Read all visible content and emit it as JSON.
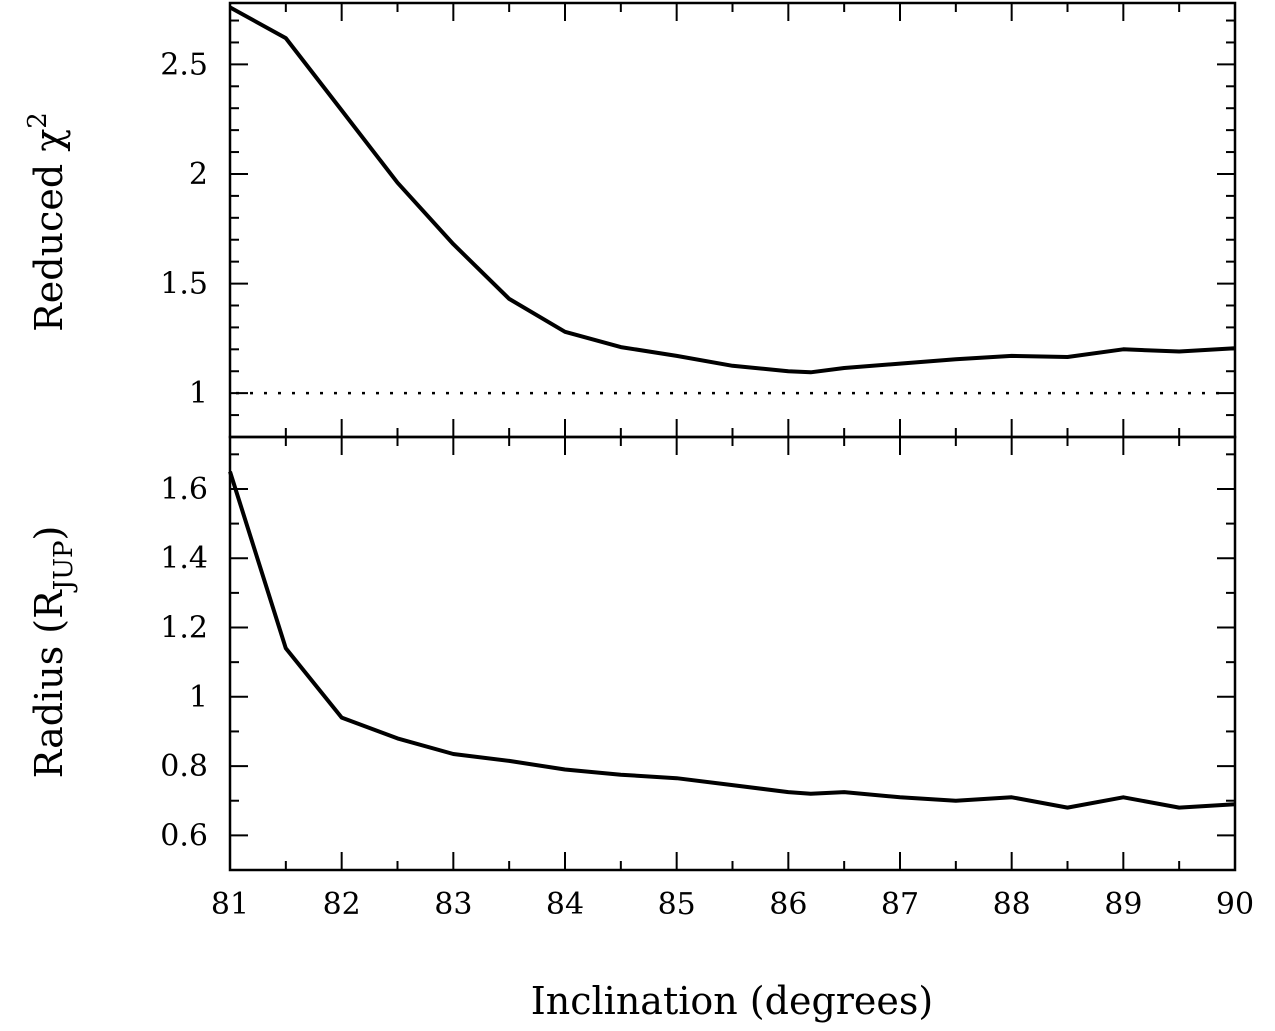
{
  "chart_data": [
    {
      "type": "line",
      "panel": "top",
      "ylabel": "Reduced χ²",
      "ylabel_main": "Reduced χ",
      "ylabel_sup": "2",
      "xlim": [
        81,
        90
      ],
      "ylim": [
        0.8,
        2.78
      ],
      "yticks": [
        1,
        1.5,
        2,
        2.5
      ],
      "ytick_labels": [
        "1",
        "1.5",
        "2",
        "2.5"
      ],
      "x": [
        81,
        81.5,
        82,
        82.5,
        83,
        83.5,
        84,
        84.5,
        85,
        85.5,
        86,
        86.2,
        86.5,
        87,
        87.5,
        88,
        88.5,
        89,
        89.5,
        90
      ],
      "values": [
        2.76,
        2.62,
        2.29,
        1.96,
        1.68,
        1.43,
        1.28,
        1.21,
        1.17,
        1.125,
        1.1,
        1.095,
        1.115,
        1.135,
        1.155,
        1.17,
        1.165,
        1.2,
        1.19,
        1.205
      ],
      "reference_line": {
        "y": 1,
        "style": "dotted"
      },
      "grid": false
    },
    {
      "type": "line",
      "panel": "bottom",
      "ylabel": "Radius (RJUP)",
      "ylabel_main": "Radius (R",
      "ylabel_sub": "JUP",
      "ylabel_close": ")",
      "xlabel": "Inclination (degrees)",
      "xlim": [
        81,
        90
      ],
      "ylim": [
        0.5,
        1.75
      ],
      "yticks": [
        0.6,
        0.8,
        1,
        1.2,
        1.4,
        1.6
      ],
      "ytick_labels": [
        "0.6",
        "0.8",
        "1",
        "1.2",
        "1.4",
        "1.6"
      ],
      "xticks": [
        81,
        82,
        83,
        84,
        85,
        86,
        87,
        88,
        89,
        90
      ],
      "xtick_labels": [
        "81",
        "82",
        "83",
        "84",
        "85",
        "86",
        "87",
        "88",
        "89",
        "90"
      ],
      "x": [
        81,
        81.5,
        82,
        82.5,
        83,
        83.5,
        84,
        84.5,
        85,
        85.5,
        86,
        86.2,
        86.5,
        87,
        87.5,
        88,
        88.5,
        89,
        89.5,
        90
      ],
      "values": [
        1.65,
        1.14,
        0.94,
        0.88,
        0.835,
        0.815,
        0.79,
        0.775,
        0.765,
        0.745,
        0.725,
        0.72,
        0.725,
        0.71,
        0.7,
        0.71,
        0.68,
        0.71,
        0.68,
        0.69
      ],
      "grid": false
    }
  ]
}
